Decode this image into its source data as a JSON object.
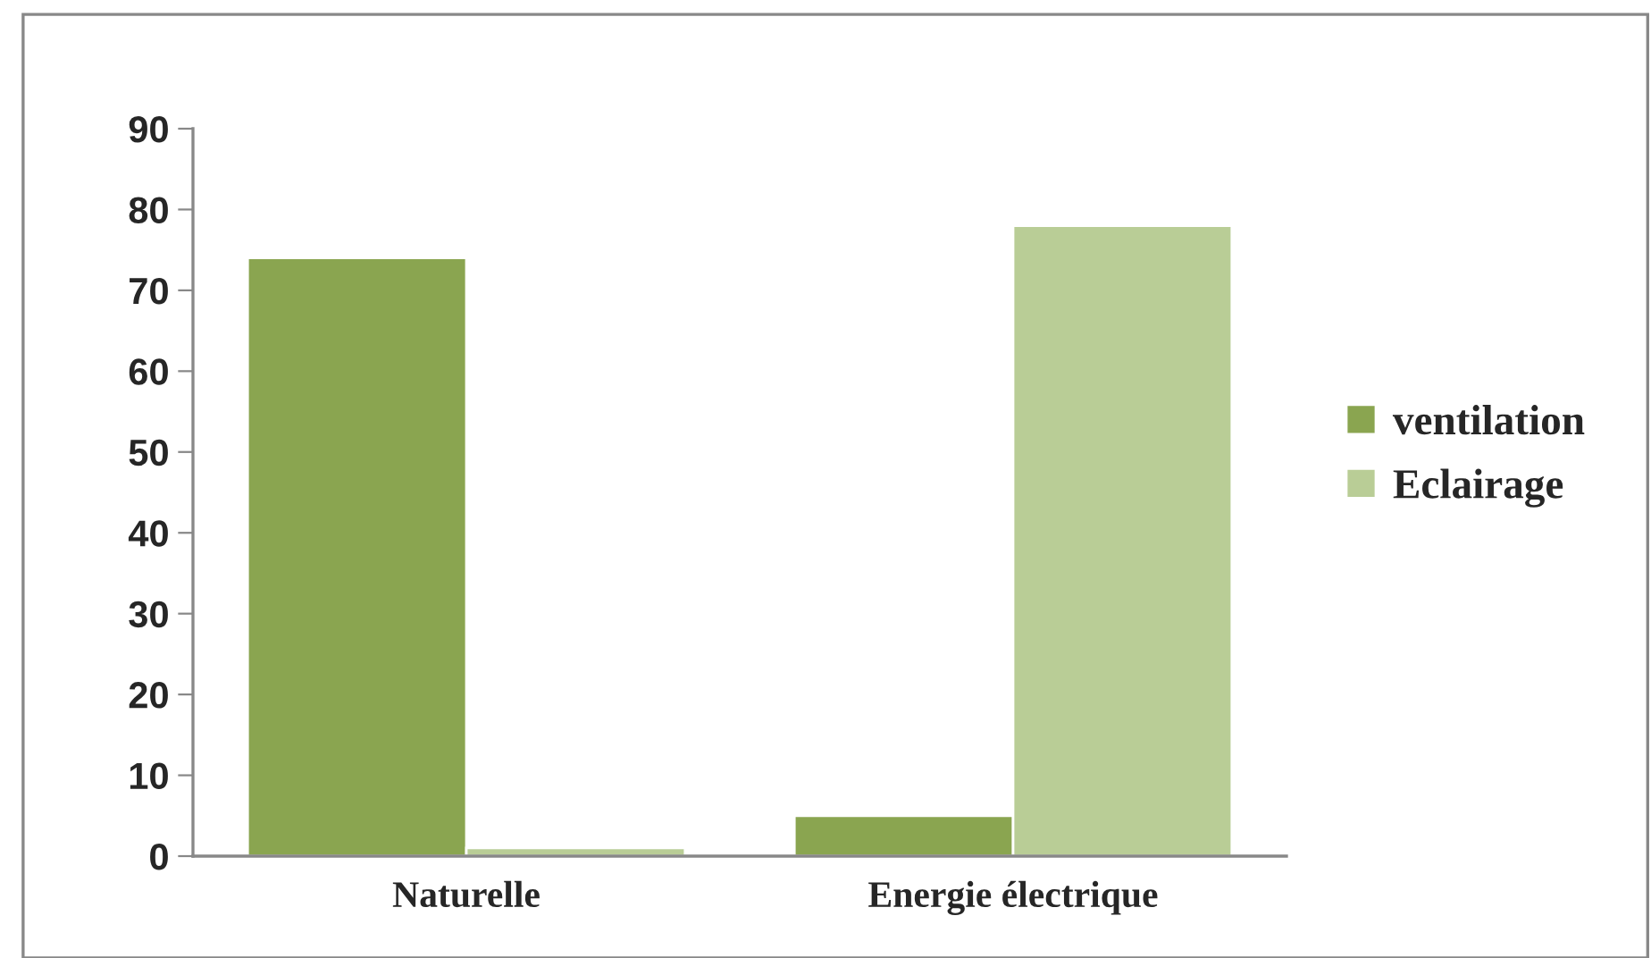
{
  "chart_data": {
    "type": "bar",
    "categories": [
      "Naturelle",
      "Energie électrique"
    ],
    "series": [
      {
        "name": "ventilation",
        "color": "#8aa550",
        "values": [
          74,
          5
        ]
      },
      {
        "name": "Eclairage",
        "color": "#b9cd96",
        "values": [
          1,
          78
        ]
      }
    ],
    "ylim": [
      0,
      90
    ],
    "yticks": [
      0,
      10,
      20,
      30,
      40,
      50,
      60,
      70,
      80,
      90
    ],
    "grid": false,
    "legend": "right"
  }
}
